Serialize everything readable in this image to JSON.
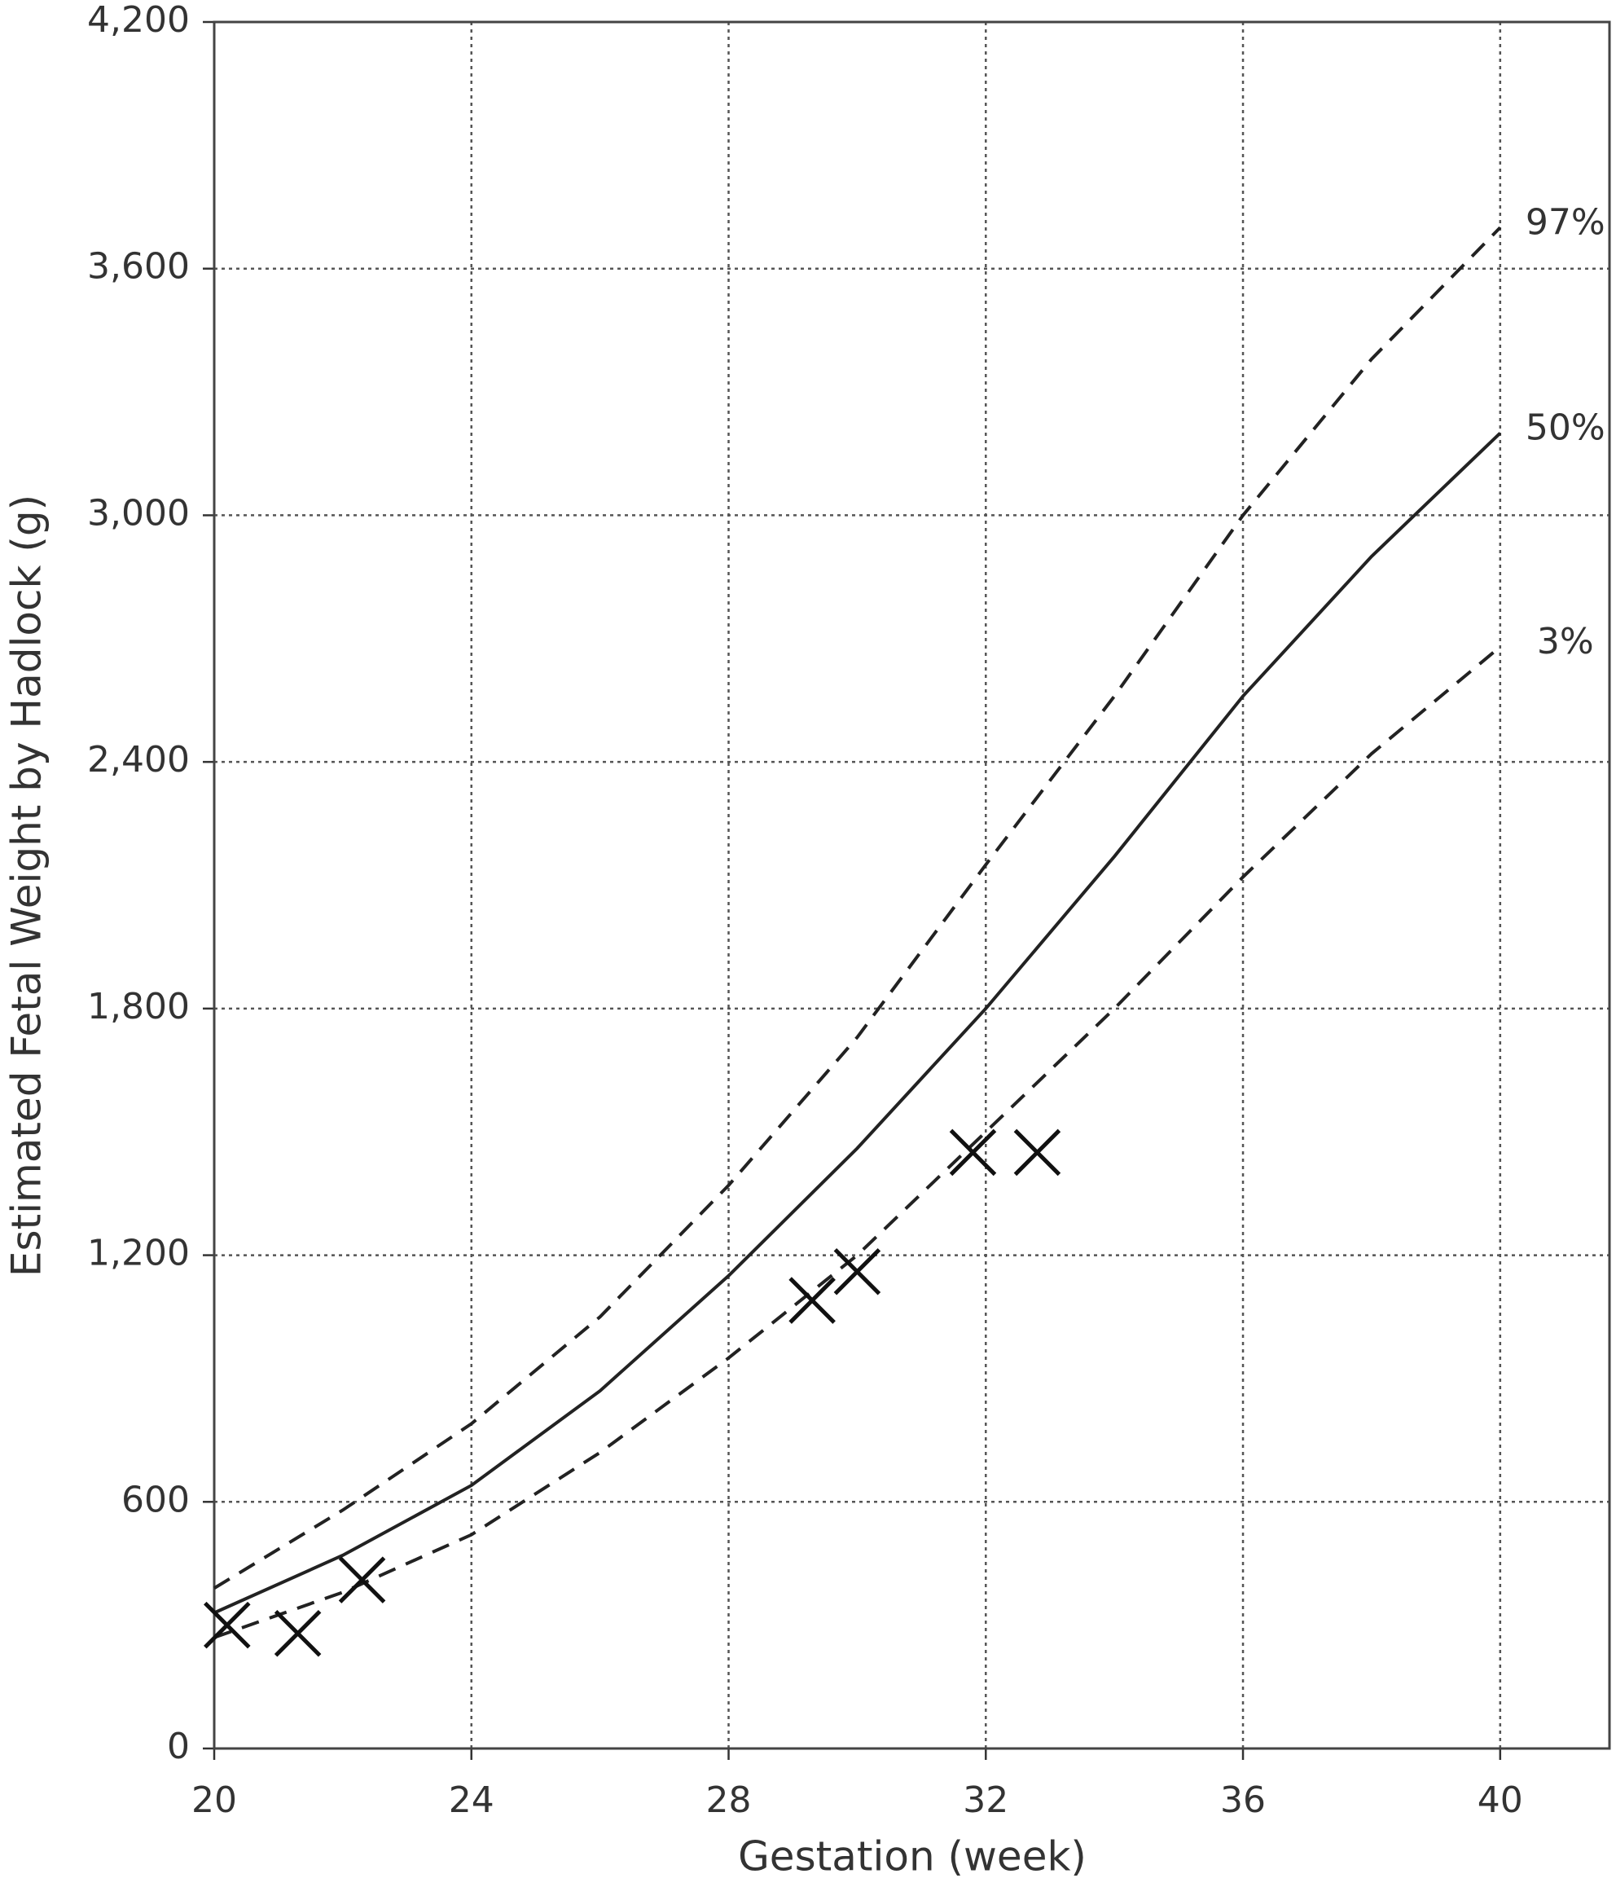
{
  "chart_data": {
    "type": "line",
    "xlabel": "Gestation (week)",
    "ylabel": "Estimated Fetal Weight by Hadlock (g)",
    "x": [
      20,
      22,
      24,
      26,
      28,
      30,
      32,
      34,
      36,
      38,
      40
    ],
    "series": [
      {
        "name": "97%",
        "color": "#222222",
        "dashed": true,
        "values": [
          390,
          580,
          790,
          1050,
          1370,
          1730,
          2150,
          2560,
          3000,
          3380,
          3700
        ]
      },
      {
        "name": "50%",
        "color": "#222222",
        "dashed": false,
        "values": [
          330,
          470,
          640,
          870,
          1150,
          1460,
          1800,
          2170,
          2560,
          2900,
          3200
        ]
      },
      {
        "name": "3%",
        "color": "#222222",
        "dashed": true,
        "values": [
          270,
          380,
          520,
          720,
          950,
          1200,
          1500,
          1800,
          2120,
          2420,
          2680
        ]
      }
    ],
    "measurements": {
      "type": "scatter",
      "marker": "x",
      "color": "#111111",
      "x": [
        20.2,
        21.3,
        22.3,
        29.3,
        30.0,
        31.8,
        32.8
      ],
      "values": [
        300,
        280,
        410,
        1090,
        1160,
        1450,
        1450
      ]
    },
    "xlim": [
      20,
      41.7
    ],
    "ylim": [
      0,
      4200
    ],
    "xticks": [
      20,
      24,
      28,
      32,
      36,
      40
    ],
    "yticks": [
      0,
      600,
      {
        "value": 1200,
        "label": "1,200"
      },
      {
        "value": 1800,
        "label": "1,800"
      },
      {
        "value": 2400,
        "label": "2,400"
      },
      {
        "value": 3000,
        "label": "3,000"
      },
      {
        "value": 3600,
        "label": "3,600"
      },
      {
        "value": 4200,
        "label": "4,200"
      }
    ],
    "grid": true
  }
}
